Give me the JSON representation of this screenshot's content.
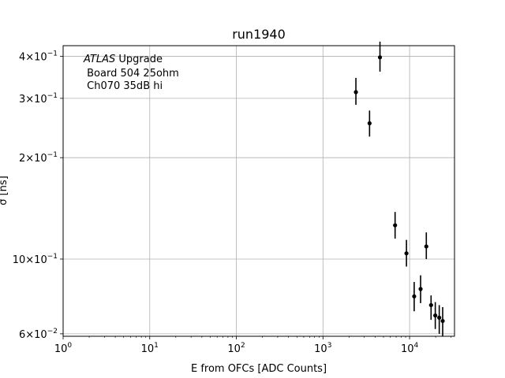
{
  "chart_data": {
    "type": "scatter",
    "title": "run1940",
    "xlabel": "E from OFCs [ADC Counts]",
    "ylabel": "σ [ns]",
    "xscale": "log",
    "yscale": "log",
    "xlim": [
      1,
      33000
    ],
    "ylim": [
      0.059,
      0.43
    ],
    "grid": true,
    "x_ticks": [
      {
        "value": 1,
        "base": "10",
        "exp": "0"
      },
      {
        "value": 10,
        "base": "10",
        "exp": "1"
      },
      {
        "value": 100,
        "base": "10",
        "exp": "2"
      },
      {
        "value": 1000,
        "base": "10",
        "exp": "3"
      },
      {
        "value": 10000,
        "base": "10",
        "exp": "4"
      }
    ],
    "y_ticks": [
      {
        "value": 0.06,
        "mant": "6",
        "exp": "−2"
      },
      {
        "value": 0.1,
        "mant": "10",
        "exp": "−1"
      },
      {
        "value": 0.2,
        "mant": "2",
        "exp": "−1"
      },
      {
        "value": 0.3,
        "mant": "3",
        "exp": "−1"
      },
      {
        "value": 0.4,
        "mant": "4",
        "exp": "−1"
      }
    ],
    "annotation": {
      "italic": "ATLAS",
      "rest": " Upgrade",
      "line2": " Board 504 25ohm",
      "line3": " Ch070 35dB hi"
    },
    "colors": {
      "marker": "#000000",
      "grid": "#b0b0b0"
    },
    "points": [
      {
        "x": 2400,
        "y": 0.313,
        "ylo": 0.287,
        "yhi": 0.345
      },
      {
        "x": 3450,
        "y": 0.253,
        "ylo": 0.231,
        "yhi": 0.276
      },
      {
        "x": 4550,
        "y": 0.397,
        "ylo": 0.36,
        "yhi": 0.442
      },
      {
        "x": 6800,
        "y": 0.126,
        "ylo": 0.115,
        "yhi": 0.138
      },
      {
        "x": 9200,
        "y": 0.104,
        "ylo": 0.095,
        "yhi": 0.114
      },
      {
        "x": 11300,
        "y": 0.0775,
        "ylo": 0.07,
        "yhi": 0.0855
      },
      {
        "x": 13400,
        "y": 0.0815,
        "ylo": 0.074,
        "yhi": 0.0895
      },
      {
        "x": 15600,
        "y": 0.109,
        "ylo": 0.1,
        "yhi": 0.12
      },
      {
        "x": 17700,
        "y": 0.073,
        "ylo": 0.066,
        "yhi": 0.078
      },
      {
        "x": 19800,
        "y": 0.068,
        "ylo": 0.062,
        "yhi": 0.0745
      },
      {
        "x": 22000,
        "y": 0.067,
        "ylo": 0.06,
        "yhi": 0.073
      },
      {
        "x": 24100,
        "y": 0.0655,
        "ylo": 0.059,
        "yhi": 0.072
      }
    ]
  }
}
